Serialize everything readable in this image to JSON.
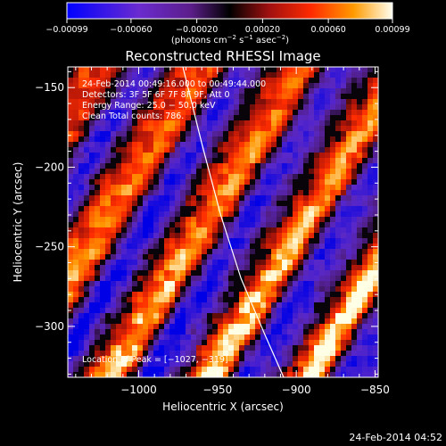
{
  "chart_data": {
    "type": "heatmap",
    "title": "Reconstructed RHESSI Image",
    "xlabel": "Heliocentric X (arcsec)",
    "ylabel": "Heliocentric Y (arcsec)",
    "xlim": [
      -1045,
      -848
    ],
    "ylim": [
      -332,
      -137
    ],
    "x_ticks": [
      -1000,
      -950,
      -900,
      -850
    ],
    "y_ticks": [
      -150,
      -200,
      -250,
      -300
    ],
    "x_tick_labels": [
      "−1000",
      "−950",
      "−900",
      "−850"
    ],
    "y_tick_labels": [
      "−150",
      "−200",
      "−250",
      "−300"
    ],
    "colorbar": {
      "min": -0.00099,
      "max": 0.00099,
      "tick_values": [
        -0.00099,
        -0.0006,
        -0.0002,
        0.0002,
        0.0006,
        0.00099
      ],
      "tick_labels": [
        "−0.00099",
        "−0.00060",
        "−0.00020",
        "0.00020",
        "0.00060",
        "0.00099"
      ],
      "unit_prefix": "(photons cm",
      "unit_exp1": "−2",
      "unit_mid": " s",
      "unit_exp2": "−1",
      "unit_mid2": " asec",
      "unit_exp3": "−2",
      "unit_suffix": ")"
    },
    "annotations": {
      "time_range": "24-Feb-2014 00:49:16.000 to 00:49:44.000",
      "detectors": "Detectors: 3F 5F 6F 7F 8F 9F, Att 0",
      "energy": "Energy Range: 25.0 − 50.0 keV",
      "method": "Clean     Total counts: 786.",
      "peak": "Location of Peak = [−1027, −319]"
    },
    "limb_curve": [
      [
        -972,
        -137
      ],
      [
        -960,
        -185
      ],
      [
        -948,
        -230
      ],
      [
        -935,
        -270
      ],
      [
        -920,
        -305
      ],
      [
        -908,
        -332
      ]
    ]
  },
  "footer": {
    "timestamp": "24-Feb-2014 04:52"
  }
}
